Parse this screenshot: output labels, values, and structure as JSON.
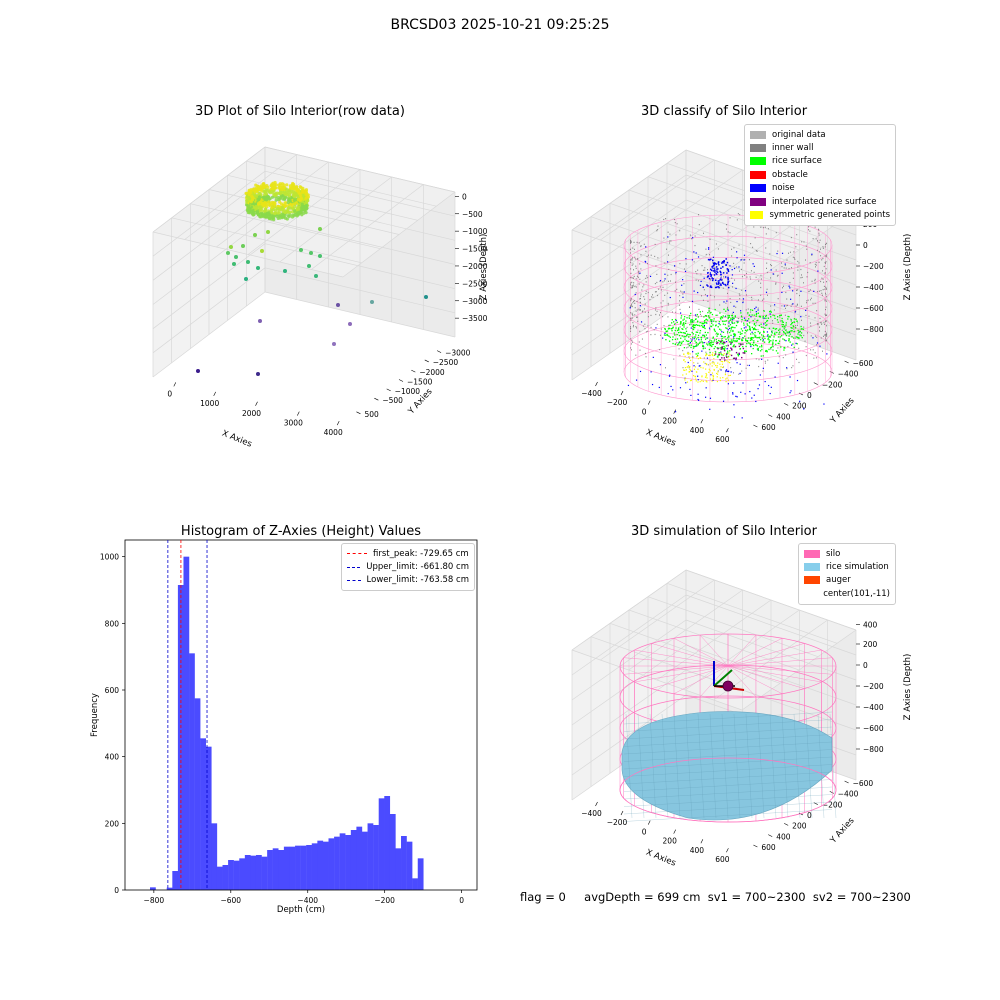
{
  "suptitle": "BRCSD03 2025-10-21 09:25:25",
  "footer": {
    "flag": "flag = 0",
    "stats": "avgDepth = 699 cm  sv1 = 700~2300  sv2 = 700~2300"
  },
  "panels": {
    "raw": {
      "title": "3D Plot of Silo Interior(row data)",
      "xlabel": "X Axies",
      "ylabel": "Y Axies",
      "zlabel": "Z Axies (Depth)",
      "xticks": [
        "0",
        "1000",
        "2000",
        "3000",
        "4000"
      ],
      "yticks": [
        "500",
        "−500",
        "−1000",
        "−1500",
        "−2000",
        "−2500",
        "−3000"
      ],
      "zticks": [
        "0",
        "−500",
        "−1000",
        "−1500",
        "−2000",
        "−2500",
        "−3000",
        "−3500"
      ]
    },
    "classify": {
      "title": "3D classify of Silo Interior",
      "xlabel": "X Axies",
      "ylabel": "Y Axies",
      "zlabel": "Z Axies (Depth)",
      "xticks": [
        "−400",
        "−200",
        "0",
        "200",
        "400",
        "600"
      ],
      "yticks": [
        "600",
        "400",
        "200",
        "0",
        "−200",
        "−400",
        "−600"
      ],
      "zticks": [
        "200",
        "0",
        "−200",
        "−400",
        "−600",
        "−800"
      ],
      "zticks_partial": "00",
      "legend": [
        {
          "label": "original data",
          "color": "#b0b0b0"
        },
        {
          "label": "inner wall",
          "color": "#808080"
        },
        {
          "label": "rice surface",
          "color": "#00ff00"
        },
        {
          "label": "obstacle",
          "color": "#ff0000"
        },
        {
          "label": "noise",
          "color": "#0000ff"
        },
        {
          "label": "interpolated rice surface",
          "color": "#800080"
        },
        {
          "label": "symmetric generated points",
          "color": "#ffff00"
        }
      ]
    },
    "simulation": {
      "title": "3D simulation of Silo Interior",
      "xlabel": "X Axies",
      "ylabel": "Y Axies",
      "zlabel": "Z Axies (Depth)",
      "xticks": [
        "−400",
        "−200",
        "0",
        "200",
        "400",
        "600"
      ],
      "yticks": [
        "600",
        "400",
        "200",
        "0",
        "−200",
        "−400",
        "−600"
      ],
      "zticks": [
        "400",
        "200",
        "0",
        "−200",
        "−400",
        "−600",
        "−800"
      ],
      "legend": [
        {
          "label": "silo",
          "color": "#ff69b4"
        },
        {
          "label": "rice simulation",
          "color": "#87ceeb"
        },
        {
          "label": "auger",
          "color": "#ff4500"
        },
        {
          "label": "center(101,-11)",
          "color": ""
        }
      ]
    }
  },
  "chart_data": [
    {
      "type": "scatter",
      "subtype": "3d",
      "title": "3D Plot of Silo Interior(row data)",
      "xlabel": "X Axies",
      "ylabel": "Y Axies",
      "zlabel": "Z Axies (Depth)",
      "xlim": [
        -500,
        4000
      ],
      "ylim": [
        -3000,
        700
      ],
      "zlim": [
        -3700,
        100
      ],
      "colormap": "viridis (by depth)",
      "grid": true
    },
    {
      "type": "scatter",
      "subtype": "3d",
      "title": "3D classify of Silo Interior",
      "xlabel": "X Axies",
      "ylabel": "Y Axies",
      "zlabel": "Z Axies (Depth)",
      "xlim": [
        -500,
        700
      ],
      "ylim": [
        -650,
        650
      ],
      "zlim": [
        -900,
        300
      ],
      "series": [
        {
          "name": "original data"
        },
        {
          "name": "inner wall"
        },
        {
          "name": "rice surface"
        },
        {
          "name": "obstacle"
        },
        {
          "name": "noise"
        },
        {
          "name": "interpolated rice surface"
        },
        {
          "name": "symmetric generated points"
        }
      ],
      "legend_position": "upper-right",
      "grid": true
    },
    {
      "type": "bar",
      "subtype": "histogram",
      "title": "Histogram of Z-Axies (Height) Values",
      "xlabel": "Depth (cm)",
      "ylabel": "Frequency",
      "xlim": [
        -875,
        40
      ],
      "ylim": [
        0,
        1050
      ],
      "bin_width": 14.5,
      "bin_start": -810,
      "values": [
        8,
        0,
        0,
        7,
        57,
        915,
        1000,
        710,
        575,
        455,
        430,
        200,
        70,
        75,
        90,
        88,
        95,
        105,
        103,
        105,
        100,
        120,
        125,
        120,
        130,
        130,
        133,
        133,
        135,
        140,
        148,
        145,
        155,
        160,
        170,
        165,
        180,
        190,
        175,
        200,
        195,
        275,
        282,
        228,
        125,
        162,
        145,
        35,
        95
      ],
      "vlines": [
        {
          "label": "first_peak: -729.65 cm",
          "x": -729.65,
          "color": "#ff0000"
        },
        {
          "label": "Upper_limit: -661.80 cm",
          "x": -661.8,
          "color": "#0000cc"
        },
        {
          "label": "Lower_limit: -763.58 cm",
          "x": -763.58,
          "color": "#0000cc"
        }
      ],
      "xticks": [
        "−800",
        "−600",
        "−400",
        "−200",
        "0"
      ],
      "yticks": [
        "0",
        "200",
        "400",
        "600",
        "800",
        "1000"
      ],
      "bar_color": "#4b4bff",
      "legend_position": "upper-right"
    },
    {
      "type": "surface",
      "subtype": "3d",
      "title": "3D simulation of Silo Interior",
      "xlabel": "X Axies",
      "ylabel": "Y Axies",
      "zlabel": "Z Axies (Depth)",
      "xlim": [
        -500,
        700
      ],
      "ylim": [
        -650,
        650
      ],
      "zlim": [
        -900,
        450
      ],
      "series": [
        {
          "name": "silo"
        },
        {
          "name": "rice simulation"
        },
        {
          "name": "auger"
        },
        {
          "name": "center(101,-11)"
        }
      ],
      "legend_position": "upper-right",
      "grid": true
    }
  ]
}
